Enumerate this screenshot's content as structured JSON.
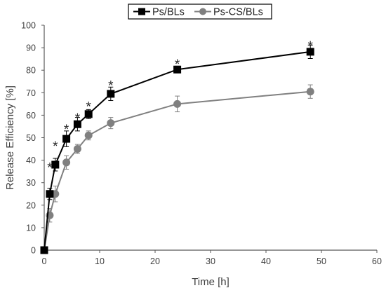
{
  "chart_data": {
    "type": "line",
    "xlabel": "Time [h]",
    "ylabel": "Release Efficiency [%]",
    "xlim": [
      0,
      60
    ],
    "ylim": [
      0,
      100
    ],
    "xticks": [
      0,
      10,
      20,
      30,
      40,
      50,
      60
    ],
    "yticks": [
      0,
      10,
      20,
      30,
      40,
      50,
      60,
      70,
      80,
      90,
      100
    ],
    "grid": false,
    "legend_position": "top-center",
    "x": [
      0,
      1,
      2,
      4,
      6,
      8,
      12,
      24,
      48
    ],
    "series": [
      {
        "name": "Ps/BLs",
        "marker": "square",
        "color": "#000000",
        "values": [
          0,
          25,
          38,
          49.5,
          56,
          60.5,
          69.5,
          80.3,
          88.2
        ],
        "errors": [
          0,
          2.5,
          2.8,
          3.5,
          3.0,
          2.0,
          3.0,
          1.5,
          3.0
        ]
      },
      {
        "name": "Ps-CS/BLs",
        "marker": "circle",
        "color": "#808080",
        "values": [
          0,
          15.5,
          25,
          39,
          45,
          51,
          56.5,
          65,
          70.5
        ],
        "errors": [
          0,
          3.0,
          3.5,
          3.0,
          2.0,
          2.0,
          2.5,
          3.5,
          3.0
        ]
      }
    ],
    "annotations": [
      {
        "text": "*",
        "x": 1,
        "y": 38.5
      },
      {
        "text": "*",
        "x": 2,
        "y": 48
      },
      {
        "text": "*",
        "x": 4,
        "y": 55.5
      },
      {
        "text": "*",
        "x": 6,
        "y": 60.5
      },
      {
        "text": "*",
        "x": 8,
        "y": 65.5
      },
      {
        "text": "*",
        "x": 12,
        "y": 75
      },
      {
        "text": "*",
        "x": 24,
        "y": 84.5
      },
      {
        "text": "*",
        "x": 48,
        "y": 92.5
      }
    ]
  }
}
